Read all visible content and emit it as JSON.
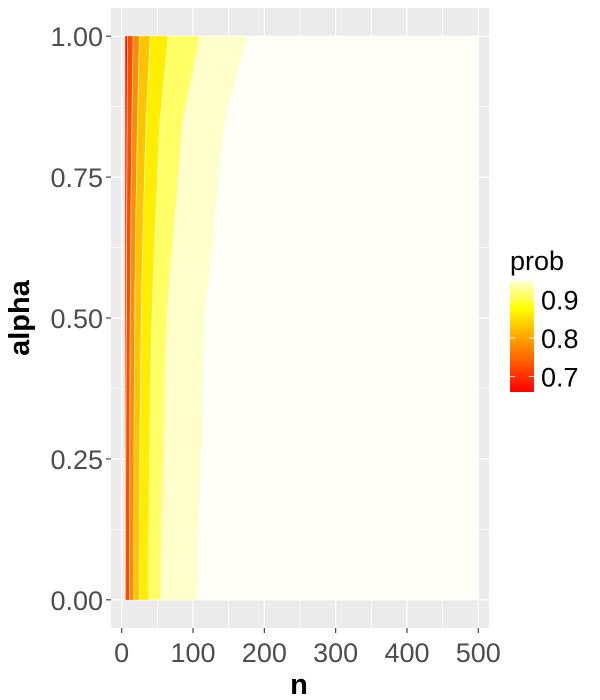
{
  "chart_data": {
    "type": "heatmap",
    "title": "",
    "xlabel": "n",
    "ylabel": "alpha",
    "xlim": [
      -15,
      515
    ],
    "ylim": [
      -0.05,
      1.05
    ],
    "x_ticks": [
      0,
      100,
      200,
      300,
      400,
      500
    ],
    "x_tick_labels": [
      "0",
      "100",
      "200",
      "300",
      "400",
      "500"
    ],
    "y_ticks": [
      0,
      0.25,
      0.5,
      0.75,
      1.0
    ],
    "y_tick_labels": [
      "0.00",
      "0.25",
      "0.50",
      "0.75",
      "1.00"
    ],
    "x_range": [
      5,
      500
    ],
    "y_range": [
      0,
      1
    ],
    "grid": true,
    "legend": {
      "title": "prob",
      "placement": "right",
      "ticks": [
        0.7,
        0.8,
        0.9
      ],
      "tick_labels": [
        "0.7",
        "0.8",
        "0.9"
      ],
      "range": [
        0.66,
        0.95
      ],
      "colors": [
        "#ff0000",
        "#ffff00",
        "#ffffff"
      ]
    },
    "contour_levels": [
      0.7,
      0.75,
      0.8,
      0.85,
      0.9,
      0.95
    ],
    "contours": [
      {
        "level": 0.7,
        "n_at_alpha0": 5,
        "n_at_alpha1": 8
      },
      {
        "level": 0.75,
        "n_at_alpha0": 11,
        "n_at_alpha1": 16
      },
      {
        "level": 0.8,
        "n_at_alpha0": 17,
        "n_at_alpha1": 25
      },
      {
        "level": 0.85,
        "n_at_alpha0": 25,
        "n_at_alpha1": 40
      },
      {
        "level": 0.9,
        "n_at_alpha0": 38,
        "n_at_alpha1": 65
      },
      {
        "level": 0.95,
        "n_at_alpha0": 55,
        "n_at_alpha1": 110
      }
    ]
  }
}
